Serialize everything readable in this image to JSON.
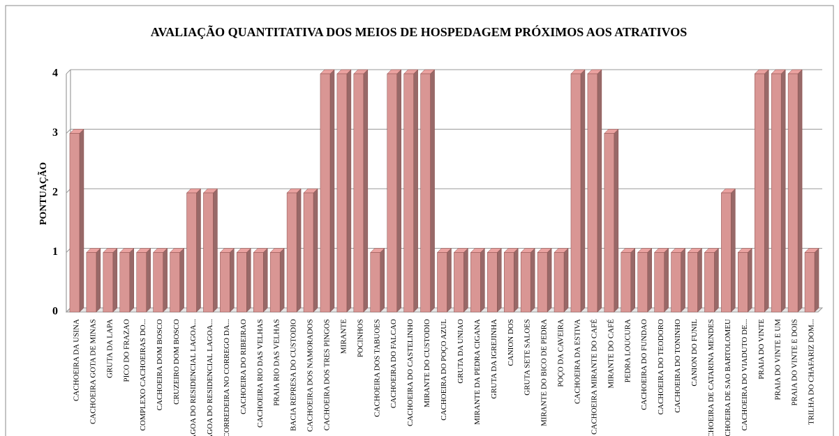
{
  "chart_data": {
    "type": "bar",
    "title": "AVALIAÇÃO QUANTITATIVA DOS MEIOS DE HOSPEDAGEM PRÓXIMOS AOS ATRATIVOS",
    "y_label": "PONTUAÇÃO",
    "categories": [
      "CACHOEIRA DA USINA",
      "CACHOEIRA GOTA DE MINAS",
      "GRUTA DA LAPA",
      "PICO DO FRAZAO",
      "COMPLEXO CACHOEIRAS DO...",
      "CACHOEIRA DOM BOSCO",
      "CRUZEIRO DOM BOSCO",
      "LAGOA DO RESIDENCIAL LAGOA...",
      "LAGOA DO RESIDENCIAL LAGOA...",
      "CORREDEIRA NO CORREGO DA...",
      "CACHOEIRA DO RIBEIRAO",
      "CACHOEIRA RIO DAS VELHAS",
      "PRAIA RIO DAS VELHAS",
      "BACIA REPRESA DO CUSTODIO",
      "CACHOEIRA DOS NAMORADOS",
      "CACHOEIRA DOS TRES PINGOS",
      "MIRANTE",
      "POCINHOS",
      "CACHOEIRA DOS TABUOES",
      "CACHOEIRA DO FALCAO",
      "CACHOEIRA DO CASTELINHO",
      "MIRANTE DO CUSTODIO",
      "CACHOEIRA DO POÇO AZUL",
      "GRUTA DA UNIAO",
      "MIRANTE DA PEDRA CIGANA",
      "GRUTA DA IGREJINHA",
      "CANION DOS",
      "GRUTA SETE SALOES",
      "MIRANTE DO BICO DE PEDRA",
      "POÇO DA CAVEIRA",
      "CACHOEIRA DA ESTIVA",
      "CACHOEIRA MIRANTE DO CAFÉ",
      "MIRANTE DO CAFÉ",
      "PEDRA LOUCURA",
      "CACHOEIRA DO FUNDAO",
      "CACHOEIRA DO TEODORO",
      "CACHOEIRA DO TONINHO",
      "CANION DO FUNIL",
      "CACHOEIRA DE CATARINA MENDES",
      "CACHOEIRA DE SAO BARTOLOMEU",
      "CACHOEIRA DO VIADUTO DE...",
      "PRAIA DO VINTE",
      "PRAIA DO VINTE E UM",
      "PRAIA DO VINTE E DOIS",
      "TRILHA DO CHAFARIZ DOM..."
    ],
    "values": [
      3,
      1,
      1,
      1,
      1,
      1,
      1,
      2,
      2,
      1,
      1,
      1,
      1,
      2,
      2,
      4,
      4,
      4,
      1,
      4,
      4,
      4,
      1,
      1,
      1,
      1,
      1,
      1,
      1,
      1,
      4,
      4,
      3,
      1,
      1,
      1,
      1,
      1,
      1,
      2,
      1,
      4,
      4,
      4,
      1
    ],
    "color": "#d99694",
    "ylim": [
      0,
      4
    ],
    "yticks": [
      0,
      1,
      2,
      3,
      4
    ],
    "grid": true
  }
}
